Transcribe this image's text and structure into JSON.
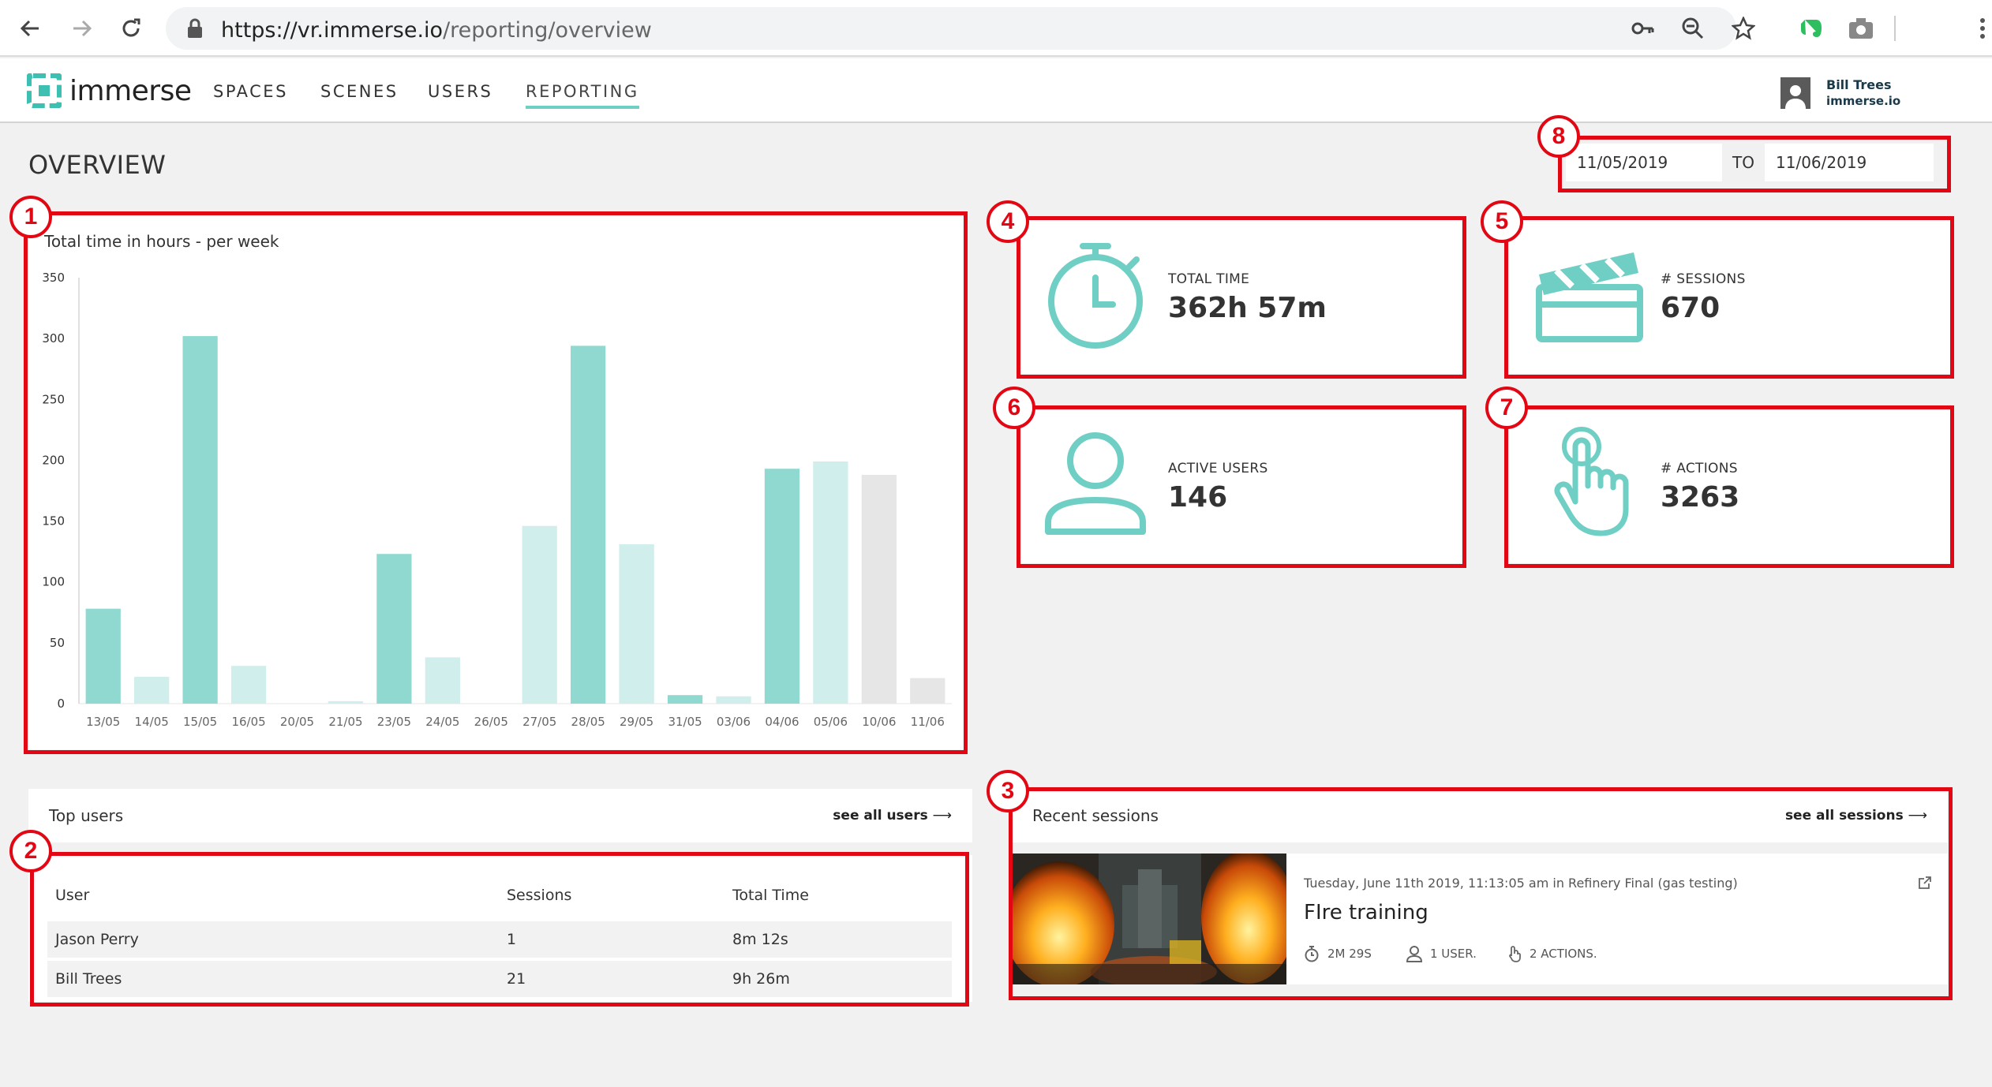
{
  "browser": {
    "url_host": "https://vr.immerse.io",
    "url_path": "/reporting/overview"
  },
  "header": {
    "logo_text": "immerse",
    "nav": [
      {
        "label": "SPACES"
      },
      {
        "label": "SCENES"
      },
      {
        "label": "USERS"
      },
      {
        "label": "REPORTING",
        "active": true
      }
    ],
    "user": {
      "name": "Bill Trees",
      "org": "immerse.io"
    }
  },
  "page": {
    "title": "OVERVIEW",
    "date_from": "11/05/2019",
    "date_to_label": "TO",
    "date_to": "11/06/2019"
  },
  "annotations": [
    "1",
    "2",
    "3",
    "4",
    "5",
    "6",
    "7",
    "8"
  ],
  "colors": {
    "accent": "#6fcfc4",
    "bar_dark": "#8fd9d1",
    "bar_light": "#d0eeeb",
    "bar_grey": "#e6e6e6",
    "annotation": "#e30613"
  },
  "chart_data": {
    "type": "bar",
    "title": "Total time in hours - per week",
    "categories": [
      "13/05",
      "14/05",
      "15/05",
      "16/05",
      "20/05",
      "21/05",
      "23/05",
      "24/05",
      "26/05",
      "27/05",
      "28/05",
      "29/05",
      "31/05",
      "03/06",
      "04/06",
      "05/06",
      "10/06",
      "11/06"
    ],
    "values": [
      78,
      22,
      302,
      31,
      0,
      2,
      123,
      38,
      0,
      146,
      294,
      131,
      7,
      6,
      193,
      199,
      188,
      21
    ],
    "bar_shades": [
      "dark",
      "light",
      "dark",
      "light",
      "light",
      "light",
      "dark",
      "light",
      "light",
      "light",
      "dark",
      "light",
      "dark",
      "light",
      "dark",
      "light",
      "grey",
      "grey"
    ],
    "yticks": [
      "0",
      "50",
      "100",
      "150",
      "200",
      "250",
      "300",
      "350"
    ],
    "ylim": [
      0,
      350
    ]
  },
  "stats": [
    {
      "icon": "stopwatch-icon",
      "label": "TOTAL TIME",
      "value": "362h 57m"
    },
    {
      "icon": "clapperboard-icon",
      "label": "# SESSIONS",
      "value": "670"
    },
    {
      "icon": "user-icon",
      "label": "ACTIVE USERS",
      "value": "146"
    },
    {
      "icon": "tap-hand-icon",
      "label": "# ACTIONS",
      "value": "3263"
    }
  ],
  "top_users": {
    "title": "Top users",
    "link": "see all users",
    "columns": [
      "User",
      "Sessions",
      "Total Time"
    ],
    "rows": [
      {
        "user": "Jason Perry",
        "sessions": "1",
        "time": "8m 12s"
      },
      {
        "user": "Bill Trees",
        "sessions": "21",
        "time": "9h 26m"
      }
    ]
  },
  "recent_sessions": {
    "title": "Recent sessions",
    "link": "see all sessions",
    "items": [
      {
        "meta": "Tuesday, June 11th 2019, 11:13:05 am in Refinery Final (gas testing)",
        "name": "FIre training",
        "duration": "2M 29S",
        "users": "1 USER.",
        "actions": "2 ACTIONS."
      }
    ]
  }
}
